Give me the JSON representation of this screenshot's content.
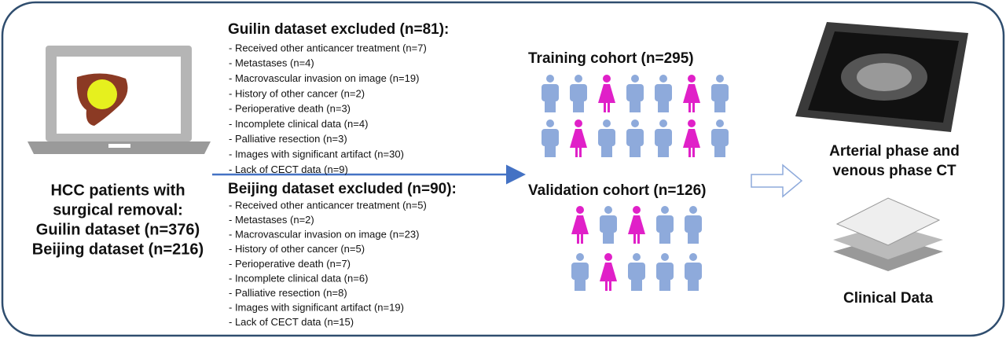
{
  "patients": {
    "lines": [
      "HCC patients with",
      "surgical removal:",
      "Guilin dataset (n=376)",
      "Beijing dataset (n=216)"
    ]
  },
  "guilin_excluded": {
    "title": "Guilin dataset excluded (n=81):",
    "items": [
      "- Received other anticancer treatment (n=7)",
      "- Metastases (n=4)",
      "- Macrovascular invasion on image (n=19)",
      "- History of other cancer (n=2)",
      "- Perioperative death (n=3)",
      "- Incomplete clinical data (n=4)",
      "- Palliative resection (n=3)",
      "- Images with significant artifact (n=30)",
      "- Lack of CECT data (n=9)"
    ]
  },
  "beijing_excluded": {
    "title": "Beijing dataset excluded (n=90):",
    "items": [
      "- Received other anticancer treatment (n=5)",
      "- Metastases (n=2)",
      "- Macrovascular invasion on image (n=23)",
      "- History of other cancer (n=5)",
      "- Perioperative death (n=7)",
      "- Incomplete clinical data (n=6)",
      "- Palliative resection (n=8)",
      "- Images with significant artifact (n=19)",
      "- Lack of CECT data (n=15)"
    ]
  },
  "training_cohort": {
    "title": "Training cohort (n=295)"
  },
  "validation_cohort": {
    "title": "Validation cohort (n=126)"
  },
  "ct": {
    "lines": [
      "Arterial phase and",
      "venous phase CT"
    ]
  },
  "clinical": {
    "label": "Clinical Data"
  }
}
